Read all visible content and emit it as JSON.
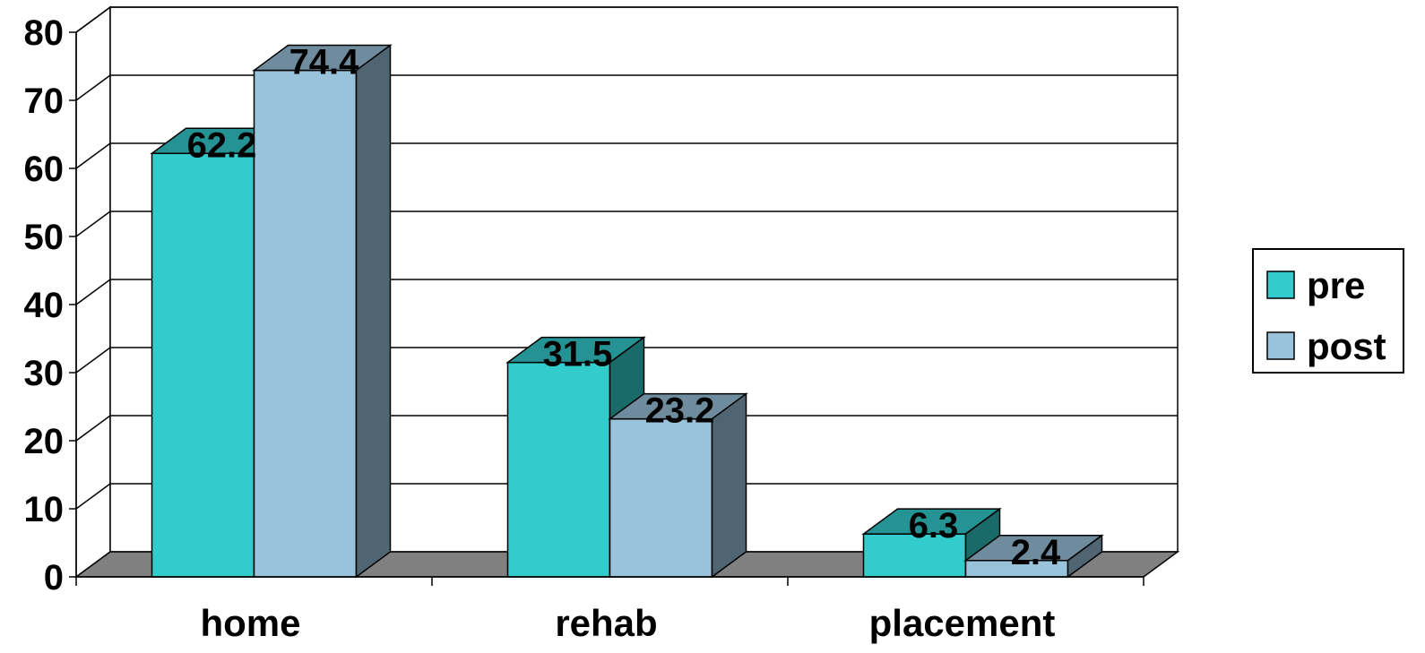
{
  "chart_data": {
    "type": "bar",
    "categories": [
      "home",
      "rehab",
      "placement"
    ],
    "series": [
      {
        "name": "pre",
        "values": [
          62.2,
          31.5,
          6.3
        ],
        "color": "#33CCCC"
      },
      {
        "name": "post",
        "values": [
          74.4,
          23.2,
          2.4
        ],
        "color": "#99C2DB"
      }
    ],
    "yticks": [
      "0",
      "10",
      "20",
      "30",
      "40",
      "50",
      "60",
      "70",
      "80"
    ],
    "ylim": [
      0,
      80
    ],
    "grid": true,
    "legend": "right",
    "style": "3d-clustered-column",
    "data_labels": [
      "62.2",
      "74.4",
      "31.5",
      "23.2",
      "6.3",
      "2.4"
    ]
  }
}
